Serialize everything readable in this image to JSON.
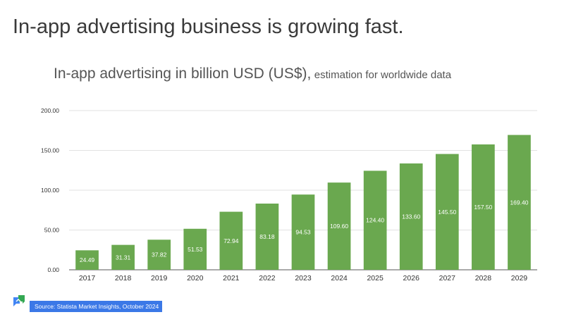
{
  "slide_title": "In-app advertising business is growing fast.",
  "chart_title": {
    "main": "In-app advertising in billion USD (US$),",
    "sub": "estimation for worldwide data"
  },
  "source_text": "Source: Statista Market Insights, October 2024",
  "colors": {
    "bar": "#6aa84f",
    "grid": "#d9d9d9",
    "source_bg": "#3b78e7"
  },
  "chart_data": {
    "type": "bar",
    "title": "In-app advertising in billion USD (US$), estimation for worldwide data",
    "categories": [
      "2017",
      "2018",
      "2019",
      "2020",
      "2021",
      "2022",
      "2023",
      "2024",
      "2025",
      "2026",
      "2027",
      "2028",
      "2029"
    ],
    "values": [
      24.49,
      31.31,
      37.82,
      51.53,
      72.94,
      83.18,
      94.53,
      109.6,
      124.4,
      133.6,
      145.5,
      157.5,
      169.4
    ],
    "data_labels": [
      "24.49",
      "31.31",
      "37.82",
      "51.53",
      "72.94",
      "83.18",
      "94.53",
      "109.60",
      "124.40",
      "133.60",
      "145.50",
      "157.50",
      "169.40"
    ],
    "y_ticks": [
      "0.00",
      "50.00",
      "100.00",
      "150.00",
      "200.00"
    ],
    "ylim": [
      0,
      200
    ],
    "grid": true,
    "legend": "none",
    "xlabel": "",
    "ylabel": ""
  }
}
